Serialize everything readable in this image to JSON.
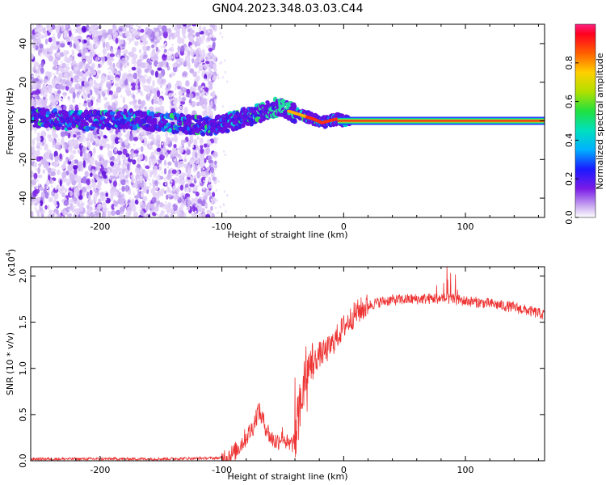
{
  "title": "GN04.2023.348.03.03.C44",
  "colors": {
    "snr_line": "#ee3333",
    "doppler_line": "#e8301a",
    "cluster_dark": "#6a10e0",
    "cluster_light": "#c8a8f0"
  },
  "chart_data": [
    {
      "type": "heatmap",
      "title": "",
      "xlabel": "Height of straight line (km)",
      "ylabel": "Frequency (Hz)",
      "xlim": [
        -257,
        165
      ],
      "ylim": [
        -50,
        50
      ],
      "xticks": [
        -200,
        -100,
        0,
        100
      ],
      "yticks": [
        -40,
        -20,
        0,
        20,
        40
      ],
      "colorbar": {
        "label": "Normalized spectral amplitude",
        "range": [
          0,
          1
        ],
        "ticks": [
          0.0,
          0.2,
          0.4,
          0.6,
          0.8
        ],
        "colormap": "rainbow"
      },
      "signal_track": {
        "description_free": true,
        "x": [
          -257,
          -220,
          -180,
          -140,
          -110,
          -95,
          -80,
          -65,
          -55,
          -45,
          -35,
          -25,
          -18,
          -12,
          -5,
          0,
          50,
          100,
          165
        ],
        "y": [
          2,
          0,
          1,
          -1,
          -3,
          -1,
          2,
          5,
          7,
          5,
          3,
          1,
          -1,
          0,
          1,
          0,
          0,
          0,
          0
        ]
      },
      "scatter_region": {
        "x_min": -257,
        "x_max": -105,
        "y_min": -50,
        "y_max": 50
      }
    },
    {
      "type": "line",
      "title": "",
      "xlabel": "Height of straight line (km)",
      "ylabel": "SNR (10 * v/v)",
      "y_scale_label": "(x10",
      "y_scale_exp": "4",
      "y_scale_close": ")",
      "xlim": [
        -257,
        165
      ],
      "ylim": [
        0,
        2.1
      ],
      "xticks": [
        -200,
        -100,
        0,
        100
      ],
      "yticks": [
        0.0,
        0.5,
        1.0,
        1.5,
        2.0
      ],
      "series": [
        {
          "x": [
            -257,
            -150,
            -100,
            -90,
            -75,
            -70,
            -65,
            -60,
            -55,
            -50,
            -45,
            -40,
            -37,
            -35,
            -32,
            -30,
            -28,
            -25,
            -20,
            -15,
            -10,
            -5,
            0,
            10,
            20,
            30,
            40,
            60,
            80,
            100,
            120,
            140,
            165
          ],
          "y": [
            0.02,
            0.02,
            0.03,
            0.08,
            0.35,
            0.55,
            0.4,
            0.25,
            0.2,
            0.28,
            0.15,
            0.22,
            0.45,
            0.6,
            0.95,
            0.8,
            1.0,
            1.05,
            1.15,
            1.18,
            1.25,
            1.35,
            1.45,
            1.6,
            1.68,
            1.72,
            1.74,
            1.75,
            1.76,
            1.73,
            1.7,
            1.66,
            1.58
          ]
        }
      ]
    }
  ]
}
